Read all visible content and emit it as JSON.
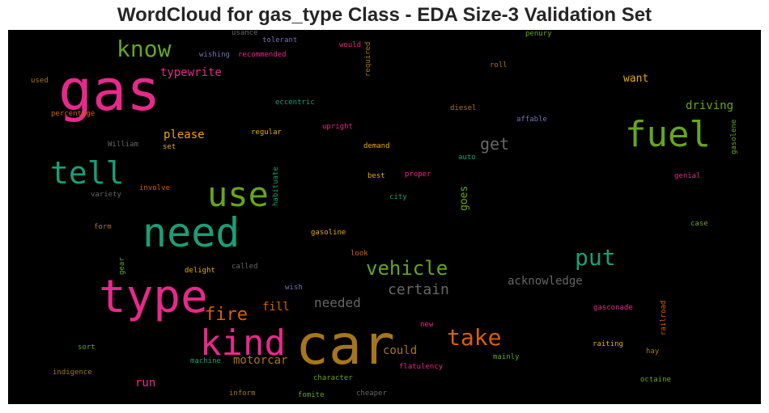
{
  "title": "WordCloud for gas_type Class - EDA Size-3 Validation Set",
  "colors": {
    "pink": "#e7298a",
    "green": "#66a61e",
    "teal": "#1b9e77",
    "orange": "#d95f02",
    "gold": "#e6ab02",
    "brown": "#a6761d",
    "gray": "#666666",
    "purple": "#7570b3"
  },
  "words": {
    "gas": "gas",
    "car": "car",
    "type": "type",
    "need": "need",
    "kind": "kind",
    "fuel": "fuel",
    "use": "use",
    "tell": "tell",
    "know": "know",
    "put": "put",
    "take": "take",
    "vehicle": "vehicle",
    "fire": "fire",
    "get": "get",
    "certain": "certain",
    "needed": "needed",
    "acknowledge": "acknowledge",
    "driving": "driving",
    "typewrite": "typewrite",
    "please": "please",
    "want": "want",
    "fill": "fill",
    "could": "could",
    "motorcar": "motorcar",
    "run": "run",
    "goes": "goes",
    "usance": "usance",
    "tolerant": "tolerant",
    "would": "would",
    "penury": "penury",
    "wishing": "wishing",
    "recommended": "recommended",
    "required": "required",
    "roll": "roll",
    "used": "used",
    "eccentric": "eccentric",
    "diesel": "diesel",
    "percentage": "percentage",
    "affable": "affable",
    "regular": "regular",
    "upright": "upright",
    "gasolene": "gasolene",
    "william": "William",
    "set": "set",
    "demand": "demand",
    "auto": "auto",
    "habituate": "habituate",
    "best": "best",
    "proper": "proper",
    "genial": "genial",
    "variety": "variety",
    "involve": "involve",
    "city": "city",
    "form": "form",
    "gasoline": "gasoline",
    "case": "case",
    "gear": "gear",
    "look": "look",
    "delight": "delight",
    "called": "called",
    "wish": "wish",
    "gasconade": "gasconade",
    "railroad": "railroad",
    "new": "new",
    "sort": "sort",
    "raiting": "raiting",
    "hay": "hay",
    "machine": "machine",
    "mainly": "mainly",
    "indigence": "indigence",
    "flatulency": "flatulency",
    "octaine": "octaine",
    "character": "character",
    "inform": "inform",
    "fomite": "fomite",
    "cheaper": "cheaper"
  }
}
